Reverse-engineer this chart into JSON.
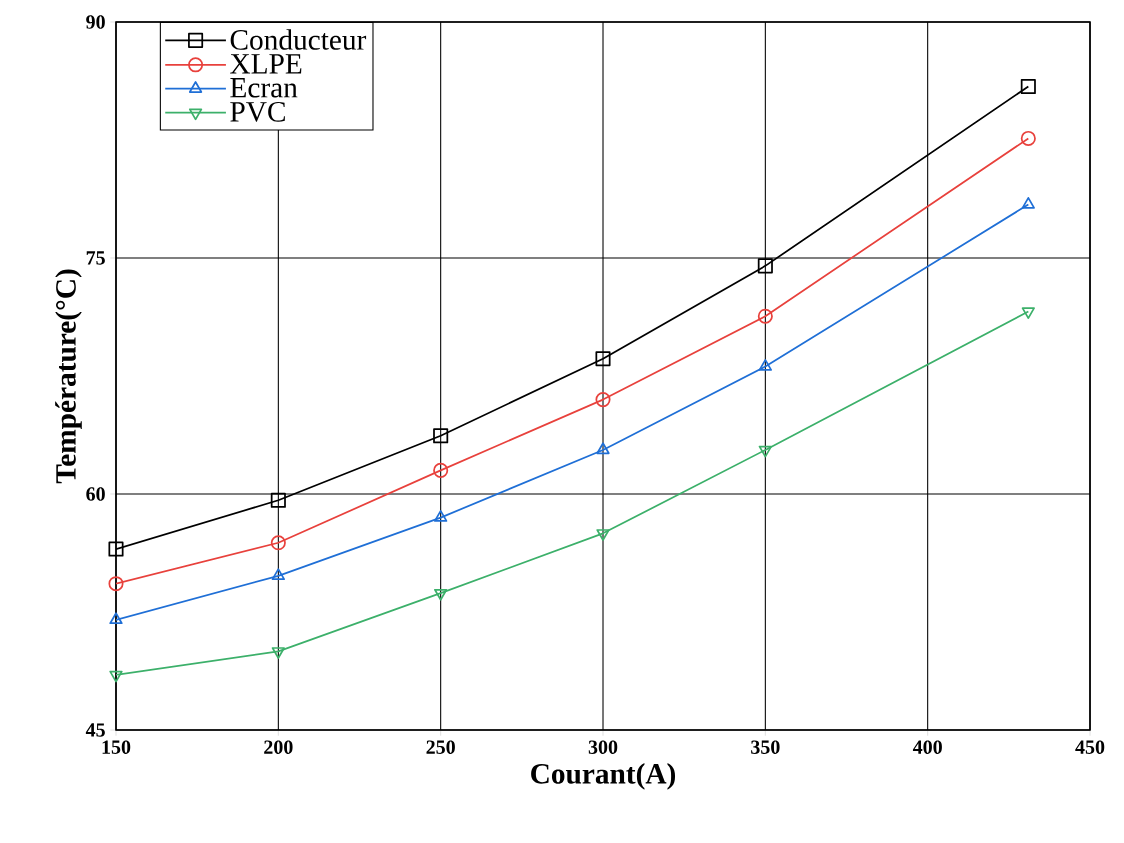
{
  "chart_data": {
    "type": "line",
    "xlabel": "Courant(A)",
    "ylabel": "Température(°C)",
    "x": [
      150,
      200,
      250,
      300,
      350,
      431
    ],
    "series": [
      {
        "name": "Conducteur",
        "color": "#000000",
        "marker": "square",
        "values": [
          56.5,
          59.6,
          63.7,
          68.6,
          74.5,
          85.9
        ]
      },
      {
        "name": "XLPE",
        "color": "#e8413c",
        "marker": "circle",
        "values": [
          54.3,
          56.9,
          61.5,
          66.0,
          71.3,
          82.6
        ]
      },
      {
        "name": "Ecran",
        "color": "#1f6fd6",
        "marker": "triangle",
        "values": [
          52.0,
          54.8,
          58.5,
          62.8,
          68.1,
          78.4
        ]
      },
      {
        "name": "PVC",
        "color": "#3cb06a",
        "marker": "triangle down",
        "values": [
          48.5,
          50.0,
          53.7,
          57.5,
          62.8,
          71.6
        ]
      }
    ],
    "xlim": [
      150,
      450
    ],
    "ylim": [
      45,
      90
    ],
    "xticks": [
      150,
      200,
      250,
      300,
      350,
      400,
      450
    ],
    "yticks": [
      45,
      60,
      75,
      90
    ],
    "grid": true,
    "legend": "top left",
    "line_style": "solid"
  }
}
